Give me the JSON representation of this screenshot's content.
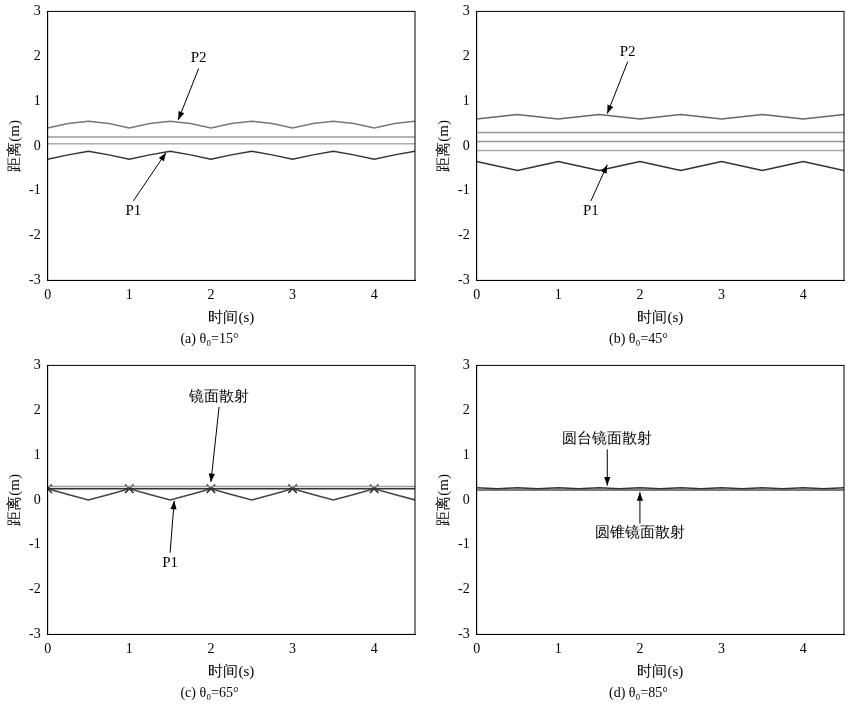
{
  "chart_data": [
    {
      "type": "line",
      "title": "(a) θ₀=15°",
      "x_label": "时间(s)",
      "y_label": "距离(m)",
      "xlim": [
        0,
        4.5
      ],
      "xticks": [
        0,
        1,
        2,
        3,
        4
      ],
      "ylim": [
        -3,
        3
      ],
      "yticks": [
        -3,
        -2,
        -1,
        0,
        1,
        2,
        3
      ],
      "grid": false,
      "x": [
        0,
        0.25,
        0.5,
        0.75,
        1,
        1.25,
        1.5,
        1.75,
        2,
        2.25,
        2.5,
        2.75,
        3,
        3.25,
        3.5,
        3.75,
        4,
        4.25,
        4.5
      ],
      "series": [
        {
          "color": "#999999",
          "values": [
            0.2,
            0.2,
            0.2,
            0.2,
            0.2,
            0.2,
            0.2,
            0.2,
            0.2,
            0.2,
            0.2,
            0.2,
            0.2,
            0.2,
            0.2,
            0.2,
            0.2,
            0.2,
            0.2
          ]
        },
        {
          "color": "#aaaaaa",
          "values": [
            0.05,
            0.05,
            0.05,
            0.05,
            0.05,
            0.05,
            0.05,
            0.05,
            0.05,
            0.05,
            0.05,
            0.05,
            0.05,
            0.05,
            0.05,
            0.05,
            0.05,
            0.05,
            0.05
          ]
        },
        {
          "color": "#777777",
          "values": [
            0.4,
            0.5,
            0.55,
            0.5,
            0.4,
            0.5,
            0.55,
            0.5,
            0.4,
            0.5,
            0.55,
            0.5,
            0.4,
            0.5,
            0.55,
            0.5,
            0.4,
            0.5,
            0.55
          ]
        },
        {
          "color": "#333333",
          "values": [
            -0.3,
            -0.2,
            -0.12,
            -0.2,
            -0.3,
            -0.2,
            -0.12,
            -0.2,
            -0.3,
            -0.2,
            -0.12,
            -0.2,
            -0.3,
            -0.2,
            -0.12,
            -0.2,
            -0.3,
            -0.2,
            -0.12
          ]
        }
      ],
      "annotations": [
        {
          "text": "P2",
          "x": 1.85,
          "y": 1.95,
          "target": [
            1.6,
            0.58
          ]
        },
        {
          "text": "P1",
          "x": 1.05,
          "y": -1.45,
          "target": [
            1.45,
            -0.15
          ]
        }
      ]
    },
    {
      "type": "line",
      "title": "(b) θ₀=45°",
      "x_label": "时间(s)",
      "y_label": "距离(m)",
      "xlim": [
        0,
        4.5
      ],
      "xticks": [
        0,
        1,
        2,
        3,
        4
      ],
      "ylim": [
        -3,
        3
      ],
      "yticks": [
        -3,
        -2,
        -1,
        0,
        1,
        2,
        3
      ],
      "grid": false,
      "x": [
        0,
        0.25,
        0.5,
        0.75,
        1,
        1.25,
        1.5,
        1.75,
        2,
        2.25,
        2.5,
        2.75,
        3,
        3.25,
        3.5,
        3.75,
        4,
        4.25,
        4.5
      ],
      "series": [
        {
          "color": "#999999",
          "values": [
            0.3,
            0.3,
            0.3,
            0.3,
            0.3,
            0.3,
            0.3,
            0.3,
            0.3,
            0.3,
            0.3,
            0.3,
            0.3,
            0.3,
            0.3,
            0.3,
            0.3,
            0.3,
            0.3
          ]
        },
        {
          "color": "#999999",
          "values": [
            0.1,
            0.1,
            0.1,
            0.1,
            0.1,
            0.1,
            0.1,
            0.1,
            0.1,
            0.1,
            0.1,
            0.1,
            0.1,
            0.1,
            0.1,
            0.1,
            0.1,
            0.1,
            0.1
          ]
        },
        {
          "color": "#aaaaaa",
          "values": [
            -0.1,
            -0.1,
            -0.1,
            -0.1,
            -0.1,
            -0.1,
            -0.1,
            -0.1,
            -0.1,
            -0.1,
            -0.1,
            -0.1,
            -0.1,
            -0.1,
            -0.1,
            -0.1,
            -0.1,
            -0.1,
            -0.1
          ]
        },
        {
          "color": "#666666",
          "values": [
            0.6,
            0.65,
            0.7,
            0.65,
            0.6,
            0.65,
            0.7,
            0.65,
            0.6,
            0.65,
            0.7,
            0.65,
            0.6,
            0.65,
            0.7,
            0.65,
            0.6,
            0.65,
            0.7
          ]
        },
        {
          "color": "#333333",
          "values": [
            -0.35,
            -0.45,
            -0.55,
            -0.45,
            -0.35,
            -0.45,
            -0.55,
            -0.45,
            -0.35,
            -0.45,
            -0.55,
            -0.45,
            -0.35,
            -0.45,
            -0.55,
            -0.45,
            -0.35,
            -0.45,
            -0.55
          ]
        }
      ],
      "annotations": [
        {
          "text": "P2",
          "x": 1.85,
          "y": 2.1,
          "target": [
            1.6,
            0.72
          ]
        },
        {
          "text": "P1",
          "x": 1.4,
          "y": -1.45,
          "target": [
            1.6,
            -0.42
          ]
        }
      ]
    },
    {
      "type": "line",
      "title": "(c) θ₀=65°",
      "x_label": "时间(s)",
      "y_label": "距离(m)",
      "xlim": [
        0,
        4.5
      ],
      "xticks": [
        0,
        1,
        2,
        3,
        4
      ],
      "ylim": [
        -3,
        3
      ],
      "yticks": [
        -3,
        -2,
        -1,
        0,
        1,
        2,
        3
      ],
      "grid": false,
      "x": [
        0,
        0.25,
        0.5,
        0.75,
        1,
        1.25,
        1.5,
        1.75,
        2,
        2.25,
        2.5,
        2.75,
        3,
        3.25,
        3.5,
        3.75,
        4,
        4.25,
        4.5
      ],
      "series": [
        {
          "color": "#999999",
          "values": [
            0.3,
            0.3,
            0.3,
            0.3,
            0.3,
            0.3,
            0.3,
            0.3,
            0.3,
            0.3,
            0.3,
            0.3,
            0.3,
            0.3,
            0.3,
            0.3,
            0.3,
            0.3,
            0.3
          ]
        },
        {
          "color": "#333333",
          "values": [
            0.25,
            0.25,
            0.25,
            0.25,
            0.25,
            0.25,
            0.25,
            0.25,
            0.25,
            0.25,
            0.25,
            0.25,
            0.25,
            0.25,
            0.25,
            0.25,
            0.25,
            0.25,
            0.25
          ]
        },
        {
          "color": "#444444",
          "values": [
            0.25,
            0.12,
            0.0,
            0.12,
            0.25,
            0.12,
            0.0,
            0.12,
            0.25,
            0.12,
            0.0,
            0.12,
            0.25,
            0.12,
            0.0,
            0.12,
            0.25,
            0.12,
            0.0
          ]
        },
        {
          "color": "#222222",
          "marker": "crossRot",
          "line_style": "none",
          "values": [
            0.25,
            null,
            null,
            null,
            0.25,
            null,
            null,
            null,
            0.25,
            null,
            null,
            null,
            0.25,
            null,
            null,
            null,
            0.25,
            null,
            null
          ]
        }
      ],
      "annotations": [
        {
          "text": "镜面散射",
          "x": 2.1,
          "y": 2.3,
          "target": [
            2.0,
            0.4
          ]
        },
        {
          "text": "P1",
          "x": 1.5,
          "y": -1.4,
          "target": [
            1.55,
            -0.02
          ]
        }
      ]
    },
    {
      "type": "line",
      "title": "(d) θ₀=85°",
      "x_label": "时间(s)",
      "y_label": "距离(m)",
      "xlim": [
        0,
        4.5
      ],
      "xticks": [
        0,
        1,
        2,
        3,
        4
      ],
      "ylim": [
        -3,
        3
      ],
      "yticks": [
        -3,
        -2,
        -1,
        0,
        1,
        2,
        3
      ],
      "grid": false,
      "x": [
        0,
        0.25,
        0.5,
        0.75,
        1,
        1.25,
        1.5,
        1.75,
        2,
        2.25,
        2.5,
        2.75,
        3,
        3.25,
        3.5,
        3.75,
        4,
        4.25,
        4.5
      ],
      "series": [
        {
          "color": "#333333",
          "values": [
            0.27,
            0.25,
            0.27,
            0.25,
            0.27,
            0.25,
            0.27,
            0.25,
            0.27,
            0.25,
            0.27,
            0.25,
            0.27,
            0.25,
            0.27,
            0.25,
            0.27,
            0.25,
            0.27
          ]
        },
        {
          "color": "#555555",
          "values": [
            0.22,
            0.22,
            0.22,
            0.22,
            0.22,
            0.22,
            0.22,
            0.22,
            0.22,
            0.22,
            0.22,
            0.22,
            0.22,
            0.22,
            0.22,
            0.22,
            0.22,
            0.22,
            0.22
          ]
        }
      ],
      "annotations": [
        {
          "text": "圆台镜面散射",
          "x": 1.6,
          "y": 1.35,
          "target": [
            1.6,
            0.32
          ]
        },
        {
          "text": "圆锥镜面散射",
          "x": 2.0,
          "y": -0.75,
          "target": [
            2.0,
            0.17
          ]
        }
      ]
    }
  ]
}
